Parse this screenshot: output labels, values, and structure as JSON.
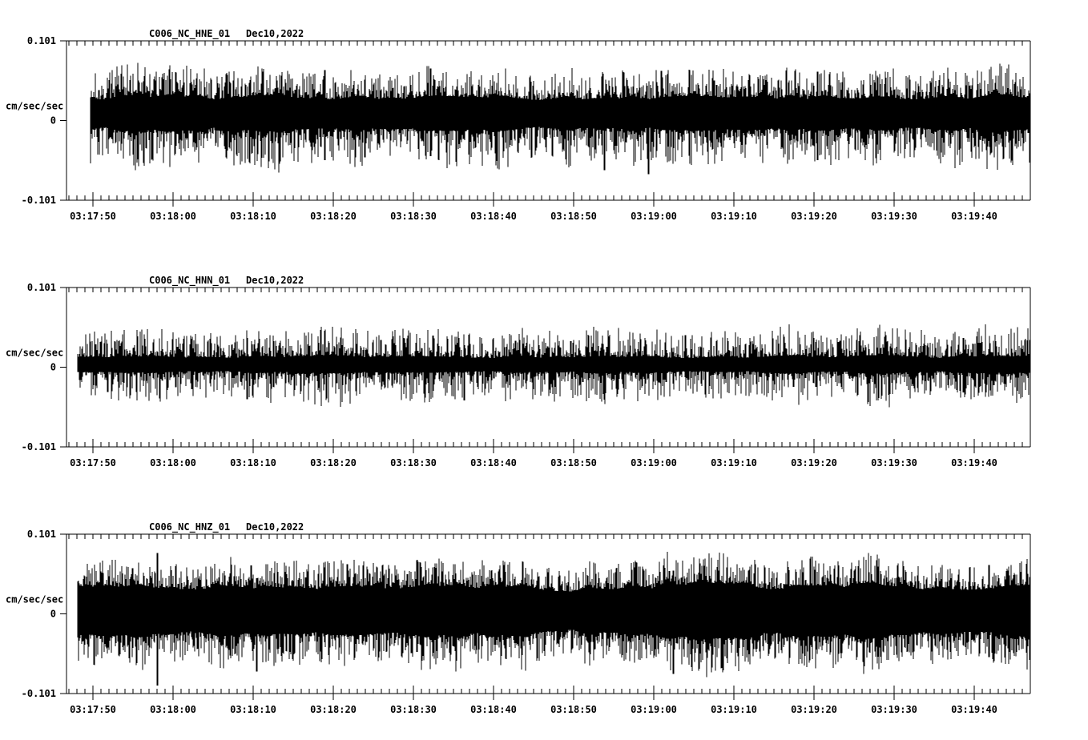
{
  "page": {
    "background": "#ffffff",
    "trace_color": "#000000",
    "text_color": "#000000"
  },
  "chart_data": [
    {
      "id": "panel-1",
      "type": "waveform",
      "station": "C006_NC_HNE_01",
      "date": "Dec10,2022",
      "ylabel": "cm/sec/sec",
      "ylim": [
        -0.101,
        0.101
      ],
      "yticks": [
        {
          "value": 0.101,
          "label": "0.101"
        },
        {
          "value": 0,
          "label": "0"
        },
        {
          "value": -0.101,
          "label": "-0.101"
        }
      ],
      "xticks": [
        "03:17:50",
        "03:18:00",
        "03:18:10",
        "03:18:20",
        "03:18:30",
        "03:18:40",
        "03:18:50",
        "03:19:00",
        "03:19:10",
        "03:19:20",
        "03:19:30",
        "03:19:40"
      ],
      "x_major_interval_s": 10,
      "x_minor_interval_s": 1,
      "grid": false,
      "legend": "none",
      "noise": {
        "seed": 7,
        "offset": 0.007,
        "core_up": 0.022,
        "tail_up": 0.036,
        "core_dn": 0.018,
        "tail_dn": 0.045
      },
      "render": {
        "start_frac": 0.0249
      },
      "envelope": [
        1.02,
        1.0,
        1.04,
        0.98,
        1.0,
        1.05,
        1.0,
        0.97,
        1.03,
        1.0,
        1.06,
        1.0,
        0.98,
        1.02,
        1.0,
        1.04,
        0.97,
        1.0,
        1.03,
        0.99,
        1.02,
        1.0,
        1.05,
        1.02
      ],
      "spikes": [
        {
          "t": 0.249,
          "up": 0.064,
          "dn": 0.05
        },
        {
          "t": 0.362,
          "up": 0.066,
          "dn": 0.045
        },
        {
          "t": 0.547,
          "up": 0.03,
          "dn": 0.063
        },
        {
          "t": 0.594,
          "up": 0.028,
          "dn": 0.068
        },
        {
          "t": 0.774,
          "up": 0.062,
          "dn": 0.05
        }
      ]
    },
    {
      "id": "panel-2",
      "type": "waveform",
      "station": "C006_NC_HNN_01",
      "date": "Dec10,2022",
      "ylabel": "cm/sec/sec",
      "ylim": [
        -0.101,
        0.101
      ],
      "yticks": [
        {
          "value": 0.101,
          "label": "0.101"
        },
        {
          "value": 0,
          "label": "0"
        },
        {
          "value": -0.101,
          "label": "-0.101"
        }
      ],
      "xticks": [
        "03:17:50",
        "03:18:00",
        "03:18:10",
        "03:18:20",
        "03:18:30",
        "03:18:40",
        "03:18:50",
        "03:19:00",
        "03:19:10",
        "03:19:20",
        "03:19:30",
        "03:19:40"
      ],
      "x_major_interval_s": 10,
      "x_minor_interval_s": 1,
      "grid": false,
      "legend": "none",
      "noise": {
        "seed": 13,
        "offset": 0.003,
        "core_up": 0.01,
        "tail_up": 0.034,
        "core_dn": 0.009,
        "tail_dn": 0.036
      },
      "render": {
        "start_frac": 0.0116
      },
      "envelope": [
        1.0,
        1.04,
        0.98,
        1.02,
        1.0,
        0.97,
        1.05,
        1.0,
        1.03,
        0.98,
        1.0,
        1.02,
        0.97,
        1.0,
        1.04,
        1.0,
        0.98,
        1.03,
        1.0,
        1.05,
        1.0,
        1.02,
        1.06,
        1.03
      ],
      "spikes": [
        {
          "t": 0.373,
          "up": 0.04,
          "dn": 0.03
        },
        {
          "t": 0.406,
          "up": 0.028,
          "dn": 0.042
        },
        {
          "t": 0.12,
          "up": 0.036,
          "dn": 0.028
        },
        {
          "t": 0.93,
          "up": 0.037,
          "dn": 0.032
        }
      ]
    },
    {
      "id": "panel-3",
      "type": "waveform",
      "station": "C006_NC_HNZ_01",
      "date": "Dec10,2022",
      "ylabel": "cm/sec/sec",
      "ylim": [
        -0.101,
        0.101
      ],
      "yticks": [
        {
          "value": 0.101,
          "label": "0.101"
        },
        {
          "value": 0,
          "label": "0"
        },
        {
          "value": -0.101,
          "label": "-0.101"
        }
      ],
      "xticks": [
        "03:17:50",
        "03:18:00",
        "03:18:10",
        "03:18:20",
        "03:18:30",
        "03:18:40",
        "03:18:50",
        "03:19:00",
        "03:19:10",
        "03:19:20",
        "03:19:30",
        "03:19:40"
      ],
      "x_major_interval_s": 10,
      "x_minor_interval_s": 1,
      "grid": false,
      "legend": "none",
      "noise": {
        "seed": 21,
        "offset": 0.004,
        "core_up": 0.03,
        "tail_up": 0.034,
        "core_dn": 0.03,
        "tail_dn": 0.04
      },
      "render": {
        "start_frac": 0.0116
      },
      "envelope": [
        1.04,
        1.0,
        0.98,
        1.03,
        1.0,
        1.06,
        0.97,
        1.0,
        1.04,
        0.99,
        1.0,
        1.03,
        0.92,
        0.88,
        1.08,
        1.12,
        1.05,
        0.98,
        0.95,
        1.04,
        1.0,
        0.97,
        1.06,
        1.08
      ],
      "spikes": [
        {
          "t": 0.0833,
          "up": 0.077,
          "dn": 0.091
        },
        {
          "t": 0.188,
          "up": 0.045,
          "dn": 0.073
        },
        {
          "t": 0.356,
          "up": 0.068,
          "dn": 0.048
        },
        {
          "t": 0.625,
          "up": 0.055,
          "dn": 0.076
        },
        {
          "t": 0.957,
          "up": 0.062,
          "dn": 0.055
        }
      ]
    }
  ]
}
